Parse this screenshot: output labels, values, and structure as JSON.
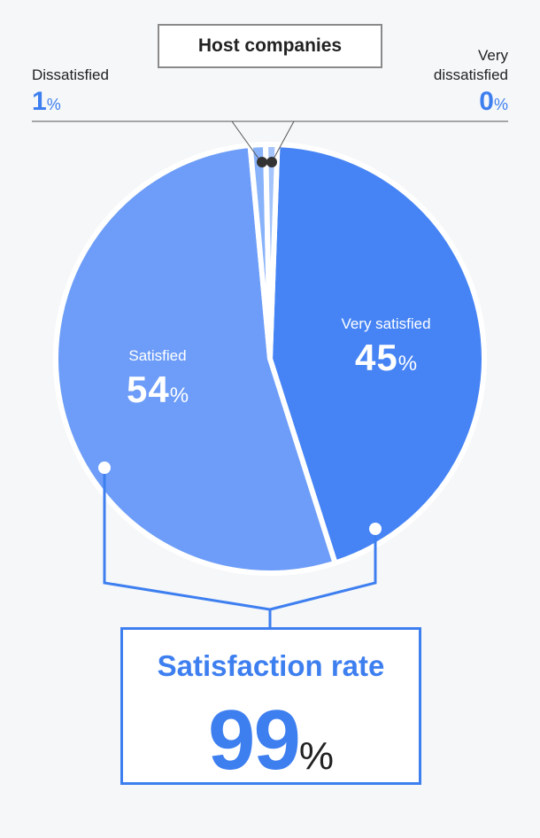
{
  "chart_data": {
    "type": "pie",
    "title": "Host companies",
    "categories": [
      "Very satisfied",
      "Satisfied",
      "Dissatisfied",
      "Very dissatisfied"
    ],
    "values": [
      45,
      54,
      1,
      0
    ],
    "unit": "%",
    "colors": [
      "#4684f5",
      "#6d9df8",
      "#88b2fa",
      "#a4c4fb"
    ],
    "summary": {
      "label": "Satisfaction rate",
      "value": 99,
      "unit": "%"
    }
  },
  "colors": {
    "accent": "#3e7ff0",
    "background": "#f5f7f9"
  }
}
